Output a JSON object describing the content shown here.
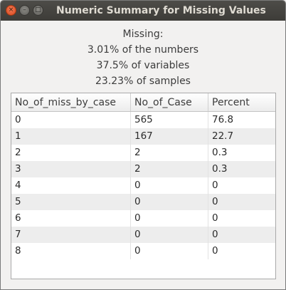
{
  "window": {
    "title": "Numeric Summary for Missing Values",
    "close_glyph": "×",
    "minimize_glyph": "–",
    "maximize_glyph": "□"
  },
  "summary": {
    "heading": "Missing:",
    "numbers": "3.01% of the numbers",
    "variables": "37.5% of variables",
    "samples": "23.23% of samples"
  },
  "table": {
    "headers": [
      "No_of_miss_by_case",
      "No_of_Case",
      "Percent"
    ],
    "rows": [
      [
        "0",
        "565",
        "76.8"
      ],
      [
        "1",
        "167",
        "22.7"
      ],
      [
        "2",
        "2",
        "0.3"
      ],
      [
        "3",
        "2",
        "0.3"
      ],
      [
        "4",
        "0",
        "0"
      ],
      [
        "5",
        "0",
        "0"
      ],
      [
        "6",
        "0",
        "0"
      ],
      [
        "7",
        "0",
        "0"
      ],
      [
        "8",
        "0",
        "0"
      ]
    ]
  }
}
